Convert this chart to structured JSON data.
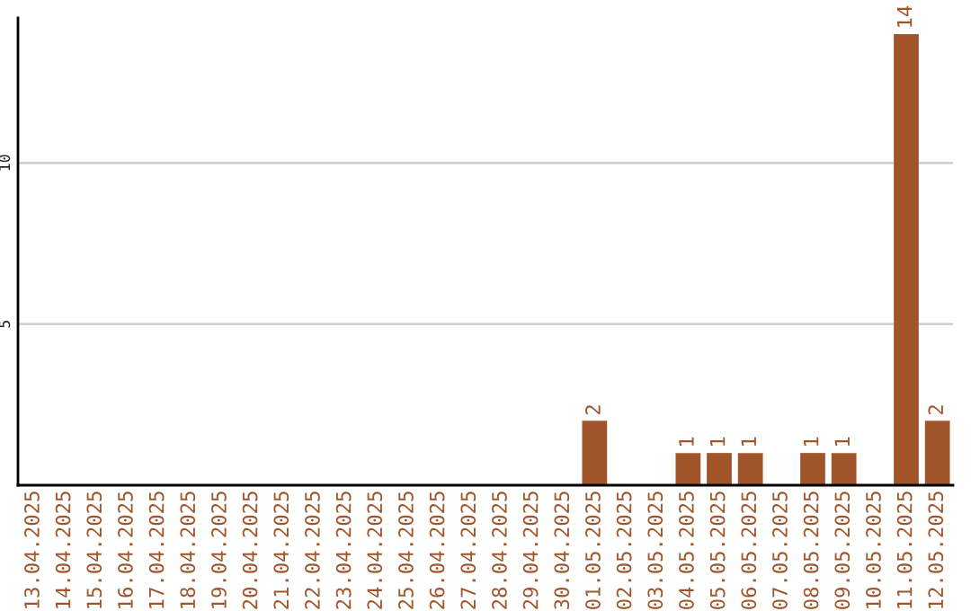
{
  "chart_data": {
    "type": "bar",
    "categories": [
      "13.04.2025",
      "14.04.2025",
      "15.04.2025",
      "16.04.2025",
      "17.04.2025",
      "18.04.2025",
      "19.04.2025",
      "20.04.2025",
      "21.04.2025",
      "22.04.2025",
      "23.04.2025",
      "24.04.2025",
      "25.04.2025",
      "26.04.2025",
      "27.04.2025",
      "28.04.2025",
      "29.04.2025",
      "30.04.2025",
      "01.05.2025",
      "02.05.2025",
      "03.05.2025",
      "04.05.2025",
      "05.05.2025",
      "06.05.2025",
      "07.05.2025",
      "08.05.2025",
      "09.05.2025",
      "10.05.2025",
      "11.05.2025",
      "12.05.2025"
    ],
    "values": [
      0,
      0,
      0,
      0,
      0,
      0,
      0,
      0,
      0,
      0,
      0,
      0,
      0,
      0,
      0,
      0,
      0,
      0,
      2,
      0,
      0,
      1,
      1,
      1,
      0,
      1,
      1,
      0,
      14,
      2
    ],
    "value_labels": [
      null,
      null,
      null,
      null,
      null,
      null,
      null,
      null,
      null,
      null,
      null,
      null,
      null,
      null,
      null,
      null,
      null,
      null,
      "2",
      null,
      null,
      "1",
      "1",
      "1",
      null,
      "1",
      "1",
      null,
      "14",
      "2"
    ],
    "color": "#a0562a",
    "ylim": [
      0,
      14.5
    ],
    "yticks": [
      5,
      10
    ],
    "grid": "y",
    "legend": false
  }
}
